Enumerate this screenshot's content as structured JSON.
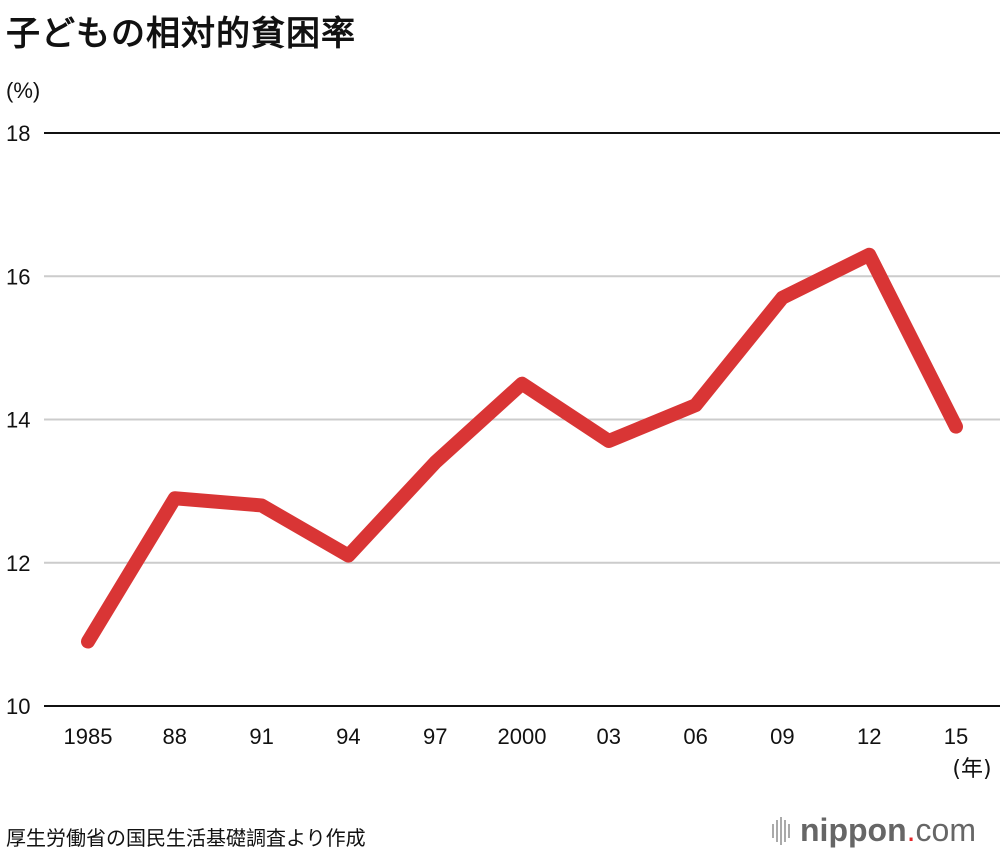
{
  "title": "子どもの相対的貧困率",
  "source": "厚生労働省の国民生活基礎調査より作成",
  "logo": {
    "main": "nippon",
    "dot": ".",
    "suffix": "com"
  },
  "colors": {
    "line": "#d93535",
    "grid": "#cccccc",
    "axis": "#111111"
  },
  "chart_data": {
    "type": "line",
    "title": "子どもの相対的貧困率",
    "ylabel": "(%)",
    "xlabel": "(年)",
    "categories": [
      "1985",
      "88",
      "91",
      "94",
      "97",
      "2000",
      "03",
      "06",
      "09",
      "12",
      "15"
    ],
    "values": [
      10.9,
      12.9,
      12.8,
      12.1,
      13.4,
      14.5,
      13.7,
      14.2,
      15.7,
      16.3,
      13.9
    ],
    "ylim": [
      10,
      18
    ],
    "yticks": [
      10,
      12,
      14,
      16,
      18
    ],
    "grid": true,
    "legend": "none"
  }
}
